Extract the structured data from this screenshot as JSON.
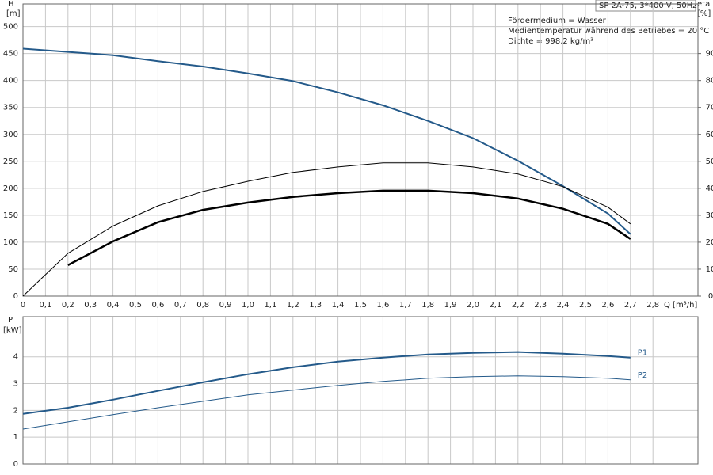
{
  "chart_data": [
    {
      "type": "line",
      "title": "SP 2A-75, 3*400 V, 50Hz",
      "annotations": [
        "Fördermedium = Wasser",
        "Medientemperatur während des Betriebes = 20 °C",
        "Dichte = 998.2 kg/m³"
      ],
      "ylabel": "H",
      "yunit": "[m]",
      "y2label": "eta",
      "y2unit": "[%]",
      "xlabel": "Q [m³/h]",
      "x": [
        0,
        0.2,
        0.4,
        0.6,
        0.8,
        1.0,
        1.2,
        1.4,
        1.6,
        1.8,
        2.0,
        2.2,
        2.4,
        2.6,
        2.7
      ],
      "xlim": [
        0,
        3.0
      ],
      "xticks": [
        0,
        {
          "value": 0.1,
          "label": "0,1"
        },
        {
          "value": 0.2,
          "label": "0,2"
        },
        {
          "value": 0.3,
          "label": "0,3"
        },
        {
          "value": 0.4,
          "label": "0,4"
        },
        {
          "value": 0.5,
          "label": "0,5"
        },
        {
          "value": 0.6,
          "label": "0,6"
        },
        {
          "value": 0.7,
          "label": "0,7"
        },
        {
          "value": 0.8,
          "label": "0,8"
        },
        {
          "value": 0.9,
          "label": "0,9"
        },
        {
          "value": 1.0,
          "label": "1,0"
        },
        {
          "value": 1.1,
          "label": "1,1"
        },
        {
          "value": 1.2,
          "label": "1,2"
        },
        {
          "value": 1.3,
          "label": "1,3"
        },
        {
          "value": 1.4,
          "label": "1,4"
        },
        {
          "value": 1.5,
          "label": "1,5"
        },
        {
          "value": 1.6,
          "label": "1,6"
        },
        {
          "value": 1.7,
          "label": "1,7"
        },
        {
          "value": 1.8,
          "label": "1,8"
        },
        {
          "value": 1.9,
          "label": "1,9"
        },
        {
          "value": 2.0,
          "label": "2,0"
        },
        {
          "value": 2.1,
          "label": "2,1"
        },
        {
          "value": 2.2,
          "label": "2,2"
        },
        {
          "value": 2.3,
          "label": "2,3"
        },
        {
          "value": 2.4,
          "label": "2,4"
        },
        {
          "value": 2.5,
          "label": "2,5"
        },
        {
          "value": 2.6,
          "label": "2,6"
        },
        {
          "value": 2.7,
          "label": "2,7"
        },
        {
          "value": 2.8,
          "label": "2,8"
        }
      ],
      "ylim": [
        0,
        542
      ],
      "yticks": [
        0,
        50,
        100,
        150,
        200,
        250,
        300,
        350,
        400,
        450,
        500
      ],
      "y2lim": [
        0,
        108.4
      ],
      "y2ticks": [
        0,
        10,
        20,
        30,
        40,
        50,
        60,
        70,
        80,
        90
      ],
      "grid": true,
      "series": [
        {
          "color": "#245a8a",
          "width": 2,
          "values": [
            459,
            453,
            447,
            436,
            426,
            413,
            399,
            378,
            354,
            325,
            293,
            251,
            204,
            153,
            115
          ]
        },
        {
          "color": "#000000",
          "width": 1,
          "axis": "y2",
          "values": [
            0,
            15.9,
            26,
            33.5,
            38.8,
            42.6,
            45.9,
            47.9,
            49.4,
            49.4,
            47.9,
            45.3,
            40.6,
            33,
            26.8
          ]
        },
        {
          "color": "#000000",
          "width": 2.5,
          "axis": "y2",
          "values": [
            null,
            11.5,
            20.3,
            27.4,
            32,
            34.7,
            36.8,
            38.2,
            39.1,
            39.1,
            38.2,
            36.2,
            32.4,
            26.8,
            21.2
          ]
        }
      ]
    },
    {
      "type": "line",
      "ylabel": "P",
      "yunit": "[kW]",
      "x": [
        0,
        0.2,
        0.4,
        0.6,
        0.8,
        1.0,
        1.2,
        1.4,
        1.6,
        1.8,
        2.0,
        2.2,
        2.4,
        2.6,
        2.7
      ],
      "xlim": [
        0,
        3.0
      ],
      "ylim": [
        0,
        5.5
      ],
      "yticks": [
        0,
        1,
        2,
        3,
        4
      ],
      "grid": true,
      "series": [
        {
          "name": "P1",
          "color": "#245a8a",
          "width": 2,
          "values": [
            1.87,
            2.1,
            2.4,
            2.73,
            3.05,
            3.35,
            3.61,
            3.82,
            3.97,
            4.09,
            4.15,
            4.18,
            4.12,
            4.03,
            3.97
          ]
        },
        {
          "name": "P2",
          "color": "#245a8a",
          "width": 1,
          "values": [
            1.3,
            1.57,
            1.84,
            2.1,
            2.34,
            2.58,
            2.76,
            2.93,
            3.08,
            3.2,
            3.26,
            3.29,
            3.26,
            3.2,
            3.14
          ]
        }
      ]
    }
  ]
}
